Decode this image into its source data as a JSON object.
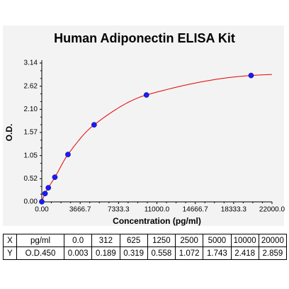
{
  "chart_data": {
    "type": "scatter",
    "title": "Human Adiponectin ELISA Kit",
    "xlabel": "Concentration (pg/ml)",
    "ylabel": "O.D.",
    "xlim": [
      0,
      22000
    ],
    "ylim": [
      0,
      3.14
    ],
    "x_ticks": [
      "0.00",
      "3666.7",
      "7333.3",
      "11000.0",
      "14666.7",
      "18333.3",
      "22000.0"
    ],
    "y_ticks": [
      "0.00",
      "0.52",
      "1.05",
      "1.57",
      "2.10",
      "2.62",
      "3.14"
    ],
    "x": [
      0,
      312,
      625,
      1250,
      2500,
      5000,
      10000,
      20000
    ],
    "y": [
      0.003,
      0.189,
      0.319,
      0.558,
      1.072,
      1.743,
      2.418,
      2.859
    ],
    "fit_curve": true,
    "grid": false,
    "colors": {
      "points": "#1a1aff",
      "curve": "#e60000"
    }
  },
  "table": {
    "x_header": "X",
    "x_unit": "pg/ml",
    "y_header": "Y",
    "y_unit": "O.D.450",
    "x_values": [
      "0.0",
      "312",
      "625",
      "1250",
      "2500",
      "5000",
      "10000",
      "20000"
    ],
    "y_values": [
      "0.003",
      "0.189",
      "0.319",
      "0.558",
      "1.072",
      "1.743",
      "2.418",
      "2.859"
    ]
  }
}
